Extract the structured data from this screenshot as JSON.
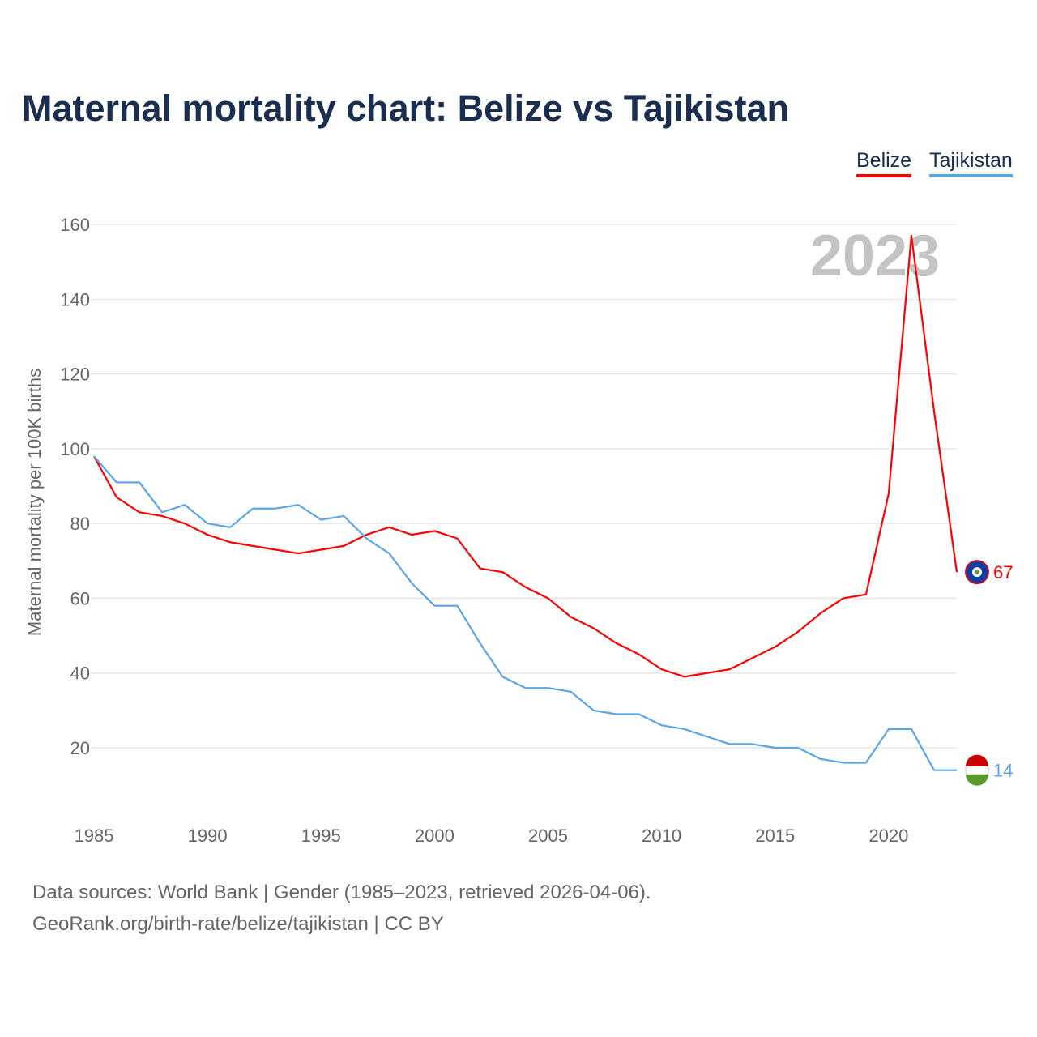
{
  "chart_data": {
    "type": "line",
    "title": "Maternal mortality chart: Belize vs Tajikistan",
    "xlabel": "",
    "ylabel": "Maternal mortality per 100K births",
    "xlim": [
      1985,
      2023
    ],
    "ylim": [
      0,
      160
    ],
    "yticks": [
      20,
      40,
      60,
      80,
      100,
      120,
      140,
      160
    ],
    "xticks": [
      1985,
      1990,
      1995,
      2000,
      2005,
      2010,
      2015,
      2020
    ],
    "grid": true,
    "legend_position": "top-right",
    "year_label": "2023",
    "x": [
      1985,
      1986,
      1987,
      1988,
      1989,
      1990,
      1991,
      1992,
      1993,
      1994,
      1995,
      1996,
      1997,
      1998,
      1999,
      2000,
      2001,
      2002,
      2003,
      2004,
      2005,
      2006,
      2007,
      2008,
      2009,
      2010,
      2011,
      2012,
      2013,
      2014,
      2015,
      2016,
      2017,
      2018,
      2019,
      2020,
      2021,
      2022,
      2023
    ],
    "series": [
      {
        "name": "Belize",
        "color": "#ff0000",
        "end_label": "67",
        "values": [
          98,
          87,
          83,
          82,
          80,
          77,
          75,
          74,
          73,
          72,
          73,
          74,
          77,
          79,
          77,
          78,
          76,
          68,
          67,
          63,
          60,
          55,
          52,
          48,
          45,
          41,
          39,
          40,
          41,
          44,
          47,
          51,
          56,
          60,
          61,
          88,
          157,
          110,
          67
        ]
      },
      {
        "name": "Tajikistan",
        "color": "#5aa5e8",
        "end_label": "14",
        "values": [
          98,
          91,
          91,
          83,
          85,
          80,
          79,
          84,
          84,
          85,
          81,
          82,
          76,
          72,
          64,
          58,
          58,
          48,
          39,
          36,
          36,
          35,
          30,
          29,
          29,
          26,
          25,
          23,
          21,
          21,
          20,
          20,
          17,
          16,
          16,
          25,
          25,
          14,
          14
        ]
      }
    ]
  },
  "footer": {
    "line1": "Data sources: World Bank | Gender (1985–2023, retrieved 2026-04-06).",
    "line2": "GeoRank.org/birth-rate/belize/tajikistan | CC BY"
  }
}
